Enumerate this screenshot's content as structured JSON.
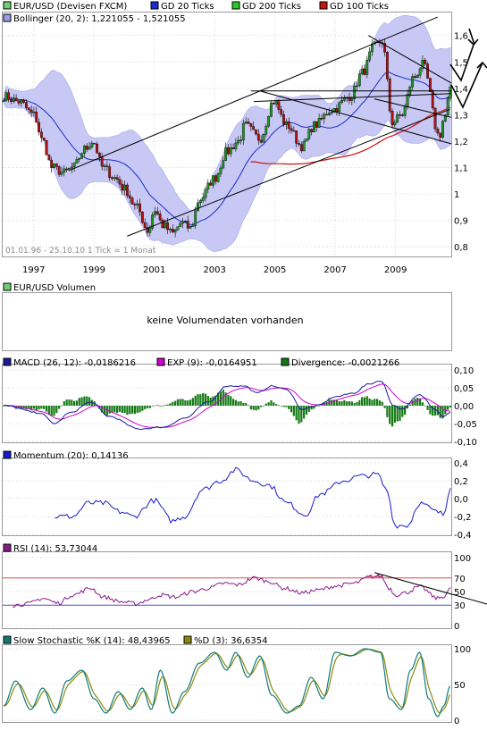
{
  "colors": {
    "frame": "#9a9a9a",
    "grid": "#d8d8d8",
    "legendBorder": "#000000",
    "price": "#000000",
    "upCandle": "#1e9a1e",
    "downCandle": "#b01010",
    "bollingerFill": "#c8c8f4",
    "bollingerLegend": "#9c9cf0",
    "gd20": "#1a2cd0",
    "gd200": "#22cc22",
    "gd100": "#cc1111",
    "macd": "#1a1aa0",
    "exp": "#d000d0",
    "divergence": "#157a15",
    "momentum": "#1a1acc",
    "rsi": "#8a1a8a",
    "rsiFill": "#f06d6d",
    "rsiUpper": "#e05050",
    "rsiLower": "#5050d0",
    "stochK": "#127a7a",
    "stochD": "#8a8a12"
  },
  "panels": {
    "price": {
      "legend": [
        {
          "label": "EUR/USD (Devisen FXCM)",
          "color": "#6fd06f"
        },
        {
          "label": "GD 20 Ticks",
          "color": "#1a2cd0"
        },
        {
          "label": "GD 200 Ticks",
          "color": "#22cc22"
        },
        {
          "label": "GD 100 Ticks",
          "color": "#cc1111"
        },
        {
          "label": "Bollinger (20, 2): 1,221055 - 1,521055",
          "color": "#9c9cf0"
        }
      ],
      "info": "01.01.96 - 25.10.10   1 Tick = 1 Monat",
      "yticks": [
        "1,6",
        "1,5",
        "1,4",
        "1,3",
        "1,2",
        "1,1",
        "1",
        "0,9",
        "0,8"
      ],
      "xticks": [
        "1997",
        "1999",
        "2001",
        "2003",
        "2005",
        "2007",
        "2009"
      ]
    },
    "volume": {
      "legend": {
        "label": "EUR/USD Volumen",
        "color": "#6fd06f"
      },
      "message": "keine Volumendaten vorhanden"
    },
    "macd": {
      "legend": [
        {
          "label": "MACD (26, 12): -0,0186216",
          "color": "#1a1aa0"
        },
        {
          "label": "EXP (9): -0,0164951",
          "color": "#d000d0"
        },
        {
          "label": "Divergence: -0,0021266",
          "color": "#157a15"
        }
      ],
      "yticks": [
        "0,10",
        "0,05",
        "0,00",
        "-0,05",
        "-0,10"
      ]
    },
    "momentum": {
      "legend": {
        "label": "Momentum (20): 0,14136",
        "color": "#1a1acc"
      },
      "yticks": [
        "0,4",
        "0,2",
        "0,0",
        "-0,2",
        "-0,4"
      ]
    },
    "rsi": {
      "legend": {
        "label": "RSI (14): 53,73044",
        "color": "#8a1a8a"
      },
      "yticks": [
        "100",
        "70",
        "50",
        "30",
        "0"
      ]
    },
    "stoch": {
      "legend": [
        {
          "label": "Slow Stochastic %K (14): 48,43965",
          "color": "#127a7a"
        },
        {
          "label": "%D (3): 36,6354",
          "color": "#8a8a12"
        }
      ],
      "yticks": [
        "100",
        "50",
        "0"
      ]
    }
  },
  "chart_data": [
    {
      "type": "candlestick",
      "title": "EUR/USD (Devisen FXCM)",
      "ylim": [
        0.78,
        1.66
      ],
      "x_start": 1996.0,
      "x_end": 2010.82,
      "close_keypoints": [
        [
          1996.0,
          1.37
        ],
        [
          1996.5,
          1.35
        ],
        [
          1997.0,
          1.3
        ],
        [
          1997.3,
          1.2
        ],
        [
          1997.6,
          1.1
        ],
        [
          1998.0,
          1.08
        ],
        [
          1998.3,
          1.1
        ],
        [
          1998.7,
          1.17
        ],
        [
          1998.95,
          1.2
        ],
        [
          1999.3,
          1.1
        ],
        [
          1999.7,
          1.06
        ],
        [
          2000.0,
          1.02
        ],
        [
          2000.4,
          0.95
        ],
        [
          2000.8,
          0.86
        ],
        [
          2001.0,
          0.94
        ],
        [
          2001.3,
          0.88
        ],
        [
          2001.6,
          0.85
        ],
        [
          2001.9,
          0.89
        ],
        [
          2002.2,
          0.87
        ],
        [
          2002.5,
          0.98
        ],
        [
          2003.0,
          1.06
        ],
        [
          2003.4,
          1.16
        ],
        [
          2003.8,
          1.2
        ],
        [
          2004.0,
          1.26
        ],
        [
          2004.5,
          1.21
        ],
        [
          2004.95,
          1.35
        ],
        [
          2005.4,
          1.26
        ],
        [
          2005.9,
          1.18
        ],
        [
          2006.3,
          1.26
        ],
        [
          2006.9,
          1.32
        ],
        [
          2007.5,
          1.37
        ],
        [
          2007.9,
          1.46
        ],
        [
          2008.3,
          1.56
        ],
        [
          2008.55,
          1.58
        ],
        [
          2008.9,
          1.27
        ],
        [
          2009.2,
          1.3
        ],
        [
          2009.6,
          1.44
        ],
        [
          2009.9,
          1.49
        ],
        [
          2010.45,
          1.22
        ],
        [
          2010.62,
          1.29
        ],
        [
          2010.82,
          1.39
        ]
      ],
      "overlays": [
        {
          "name": "GD 20 Ticks",
          "type": "moving_average",
          "period": 20
        },
        {
          "name": "GD 100 Ticks",
          "type": "moving_average",
          "period": 100
        },
        {
          "name": "Bollinger (20, 2)",
          "type": "band",
          "lower": 1.221055,
          "upper": 1.521055
        }
      ],
      "trend_lines": [
        {
          "from": [
            1998.2,
            1.09
          ],
          "to": [
            2010.4,
            1.67
          ]
        },
        {
          "from": [
            2000.1,
            0.84
          ],
          "to": [
            2010.8,
            1.32
          ]
        },
        {
          "from": [
            2004.3,
            1.35
          ],
          "to": [
            2010.85,
            1.38
          ]
        },
        {
          "from": [
            2004.5,
            1.39
          ],
          "to": [
            2010.85,
            1.19
          ]
        },
        {
          "from": [
            2004.2,
            1.39
          ],
          "to": [
            2010.85,
            1.39
          ]
        },
        {
          "from": [
            2008.1,
            1.6
          ],
          "to": [
            2010.85,
            1.42
          ]
        },
        {
          "from": [
            2008.3,
            1.36
          ],
          "to": [
            2010.85,
            1.29
          ]
        }
      ]
    },
    {
      "type": "line",
      "title": "MACD (26, 12)",
      "ylim": [
        -0.1,
        0.1
      ],
      "series": [
        {
          "name": "MACD (26, 12)",
          "last": -0.0186216
        },
        {
          "name": "EXP (9)",
          "last": -0.0164951
        },
        {
          "name": "Divergence",
          "type": "bar",
          "last": -0.0021266
        }
      ],
      "macd_keypoints": [
        [
          1996.0,
          0.0
        ],
        [
          1997.2,
          -0.02
        ],
        [
          1997.7,
          -0.05
        ],
        [
          1998.2,
          -0.02
        ],
        [
          1998.9,
          0.01
        ],
        [
          1999.5,
          -0.03
        ],
        [
          2000.5,
          -0.065
        ],
        [
          2001.3,
          -0.06
        ],
        [
          2002.0,
          -0.035
        ],
        [
          2002.8,
          0.01
        ],
        [
          2003.4,
          0.055
        ],
        [
          2004.0,
          0.055
        ],
        [
          2004.4,
          0.035
        ],
        [
          2004.9,
          0.055
        ],
        [
          2005.4,
          0.045
        ],
        [
          2005.9,
          -0.01
        ],
        [
          2006.4,
          0.0
        ],
        [
          2007.0,
          0.025
        ],
        [
          2007.6,
          0.035
        ],
        [
          2008.1,
          0.06
        ],
        [
          2008.5,
          0.07
        ],
        [
          2008.95,
          0.0
        ],
        [
          2009.2,
          -0.01
        ],
        [
          2009.8,
          0.03
        ],
        [
          2010.35,
          -0.01
        ],
        [
          2010.55,
          -0.03
        ],
        [
          2010.82,
          -0.019
        ]
      ],
      "xlim": [
        1996.0,
        2010.82
      ]
    },
    {
      "type": "line",
      "title": "Momentum (20)",
      "ylim": [
        -0.4,
        0.4
      ],
      "xlim": [
        1996.0,
        2010.82
      ],
      "keypoints": [
        [
          1997.7,
          -0.2
        ],
        [
          1998.3,
          -0.2
        ],
        [
          1998.8,
          -0.05
        ],
        [
          1999.3,
          -0.05
        ],
        [
          1999.9,
          -0.15
        ],
        [
          2000.3,
          -0.2
        ],
        [
          2001.0,
          -0.02
        ],
        [
          2001.6,
          -0.25
        ],
        [
          2002.0,
          -0.2
        ],
        [
          2002.6,
          0.1
        ],
        [
          2003.2,
          0.2
        ],
        [
          2003.7,
          0.32
        ],
        [
          2004.3,
          0.2
        ],
        [
          2004.8,
          0.15
        ],
        [
          2005.4,
          -0.05
        ],
        [
          2006.0,
          -0.18
        ],
        [
          2006.5,
          0.05
        ],
        [
          2007.3,
          0.2
        ],
        [
          2007.8,
          0.25
        ],
        [
          2008.4,
          0.27
        ],
        [
          2008.7,
          0.1
        ],
        [
          2009.0,
          -0.3
        ],
        [
          2009.4,
          -0.3
        ],
        [
          2009.8,
          -0.05
        ],
        [
          2010.4,
          -0.15
        ],
        [
          2010.6,
          -0.18
        ],
        [
          2010.82,
          0.14136
        ]
      ]
    },
    {
      "type": "line",
      "title": "RSI (14)",
      "ylim": [
        0,
        100
      ],
      "xlim": [
        1996.0,
        2010.82
      ],
      "reference_lines": [
        70,
        30
      ],
      "last": 53.73044,
      "keypoints": [
        [
          1996.3,
          30
        ],
        [
          1996.8,
          32
        ],
        [
          1997.3,
          40
        ],
        [
          1997.8,
          33
        ],
        [
          1998.3,
          45
        ],
        [
          1998.9,
          55
        ],
        [
          1999.3,
          42
        ],
        [
          1999.9,
          35
        ],
        [
          2000.4,
          32
        ],
        [
          2000.8,
          38
        ],
        [
          2001.2,
          45
        ],
        [
          2001.7,
          42
        ],
        [
          2002.3,
          50
        ],
        [
          2002.8,
          55
        ],
        [
          2003.3,
          62
        ],
        [
          2003.8,
          60
        ],
        [
          2004.3,
          70
        ],
        [
          2004.8,
          65
        ],
        [
          2005.3,
          55
        ],
        [
          2005.9,
          48
        ],
        [
          2006.4,
          52
        ],
        [
          2007.0,
          58
        ],
        [
          2007.6,
          62
        ],
        [
          2008.2,
          72
        ],
        [
          2008.5,
          73
        ],
        [
          2008.8,
          55
        ],
        [
          2009.0,
          45
        ],
        [
          2009.3,
          48
        ],
        [
          2009.8,
          57
        ],
        [
          2010.4,
          40
        ],
        [
          2010.6,
          43
        ],
        [
          2010.82,
          53.73
        ]
      ],
      "trend_line": {
        "from": [
          2008.3,
          78
        ],
        "to": [
          2010.95,
          32
        ]
      }
    },
    {
      "type": "line",
      "title": "Slow Stochastic %K (14)",
      "ylim": [
        0,
        100
      ],
      "xlim": [
        1996.0,
        2010.82
      ],
      "series": [
        {
          "name": "Slow Stochastic %K (14)",
          "last": 48.43965
        },
        {
          "name": "%D (3)",
          "last": 36.6354
        }
      ],
      "k_keypoints": [
        [
          1996.0,
          20
        ],
        [
          1996.4,
          55
        ],
        [
          1996.9,
          15
        ],
        [
          1997.3,
          45
        ],
        [
          1997.7,
          10
        ],
        [
          1998.1,
          55
        ],
        [
          1998.6,
          70
        ],
        [
          1999.0,
          30
        ],
        [
          1999.4,
          10
        ],
        [
          1999.8,
          40
        ],
        [
          2000.2,
          15
        ],
        [
          2000.6,
          45
        ],
        [
          2000.9,
          15
        ],
        [
          2001.2,
          70
        ],
        [
          2001.6,
          10
        ],
        [
          2002.0,
          40
        ],
        [
          2002.5,
          80
        ],
        [
          2003.0,
          95
        ],
        [
          2003.4,
          70
        ],
        [
          2003.7,
          95
        ],
        [
          2004.1,
          60
        ],
        [
          2004.5,
          90
        ],
        [
          2004.9,
          35
        ],
        [
          2005.4,
          10
        ],
        [
          2005.8,
          20
        ],
        [
          2006.2,
          60
        ],
        [
          2006.6,
          30
        ],
        [
          2007.0,
          95
        ],
        [
          2007.5,
          90
        ],
        [
          2008.0,
          100
        ],
        [
          2008.5,
          95
        ],
        [
          2008.8,
          30
        ],
        [
          2009.2,
          15
        ],
        [
          2009.5,
          70
        ],
        [
          2009.8,
          95
        ],
        [
          2010.1,
          30
        ],
        [
          2010.4,
          5
        ],
        [
          2010.6,
          20
        ],
        [
          2010.82,
          48.44
        ]
      ]
    }
  ]
}
